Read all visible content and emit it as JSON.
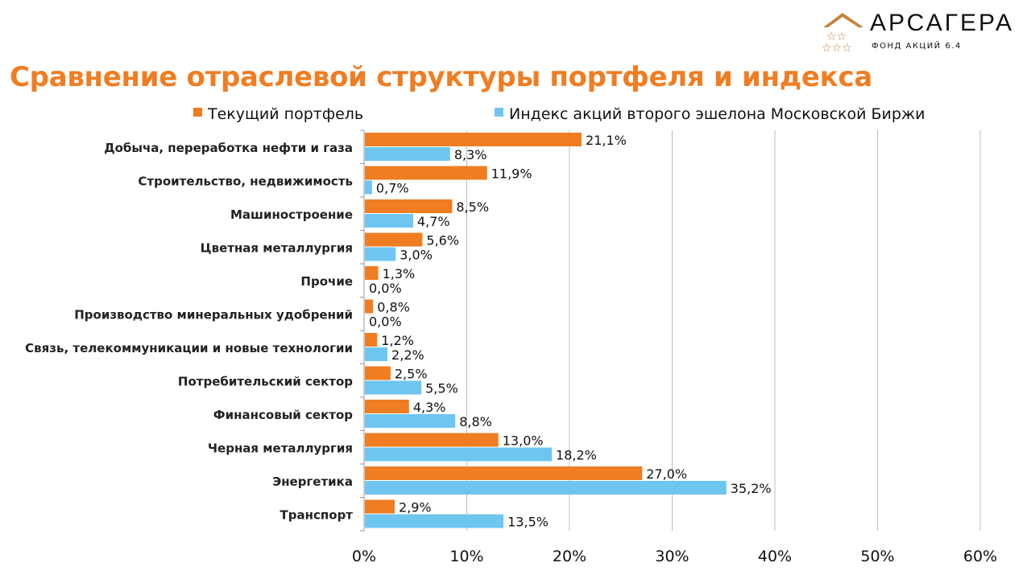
{
  "logo": {
    "name": "АРСАГЕРА",
    "subtitle": "ФОНД АКЦИЙ 6.4"
  },
  "colors": {
    "portfolio": "#f07d22",
    "index": "#6ec6f0",
    "title": "#f07d22"
  },
  "chart_data": {
    "type": "bar",
    "orientation": "horizontal",
    "title": "Сравнение отраслевой структуры портфеля и индекса",
    "categories": [
      "Добыча, переработка нефти и газа",
      "Строительство, недвижимость",
      "Машиностроение",
      "Цветная металлургия",
      "Прочие",
      "Производство минеральных удобрений",
      "Связь, телекоммуникации и новые технологии",
      "Потребительский сектор",
      "Финансовый сектор",
      "Черная металлургия",
      "Энергетика",
      "Транспорт"
    ],
    "series": [
      {
        "name": "Текущий портфель",
        "values": [
          21.1,
          11.9,
          8.5,
          5.6,
          1.3,
          0.8,
          1.2,
          2.5,
          4.3,
          13.0,
          27.0,
          2.9
        ],
        "labels": [
          "21,1%",
          "11,9%",
          "8,5%",
          "5,6%",
          "1,3%",
          "0,8%",
          "1,2%",
          "2,5%",
          "4,3%",
          "13,0%",
          "27,0%",
          "2,9%"
        ]
      },
      {
        "name": "Индекс акций второго эшелона Московской Биржи",
        "values": [
          8.3,
          0.7,
          4.7,
          3.0,
          0.0,
          0.0,
          2.2,
          5.5,
          8.8,
          18.2,
          35.2,
          13.5
        ],
        "labels": [
          "8,3%",
          "0,7%",
          "4,7%",
          "3,0%",
          "0,0%",
          "0,0%",
          "2,2%",
          "5,5%",
          "8,8%",
          "18,2%",
          "35,2%",
          "13,5%"
        ]
      }
    ],
    "xlim": [
      0,
      60
    ],
    "xticks": [
      "0%",
      "10%",
      "20%",
      "30%",
      "40%",
      "50%",
      "60%"
    ],
    "grid": true,
    "legend": "top"
  }
}
